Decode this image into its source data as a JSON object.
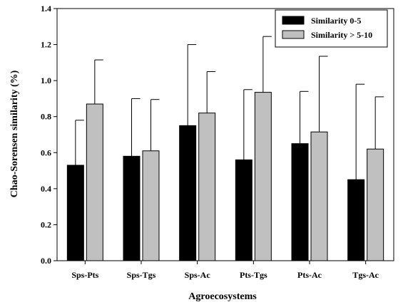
{
  "chart_data": {
    "type": "bar",
    "xlabel": "Agroecosystems",
    "ylabel": "Chao-Sorensen similarity (%)",
    "ylim": [
      0,
      1.4
    ],
    "yticks": [
      "0.0",
      "0.2",
      "0.4",
      "0.6",
      "0.8",
      "1.0",
      "1.2",
      "1.4"
    ],
    "categories": [
      "Sps-Pts",
      "Sps-Tgs",
      "Sps-Ac",
      "Pts-Tgs",
      "Pts-Ac",
      "Tgs-Ac"
    ],
    "legend_position": "top-right",
    "grid": false,
    "error_bars": "upper",
    "series": [
      {
        "name": "Similarity 0-5",
        "color": "#000000",
        "values": [
          0.53,
          0.58,
          0.75,
          0.56,
          0.65,
          0.45
        ],
        "upper": [
          0.78,
          0.9,
          1.2,
          0.95,
          0.94,
          0.98
        ]
      },
      {
        "name": "Similarity > 5-10",
        "color": "#c0c0c0",
        "values": [
          0.87,
          0.61,
          0.82,
          0.935,
          0.715,
          0.62
        ],
        "upper": [
          1.115,
          0.895,
          1.05,
          1.245,
          1.135,
          0.91
        ]
      }
    ]
  }
}
